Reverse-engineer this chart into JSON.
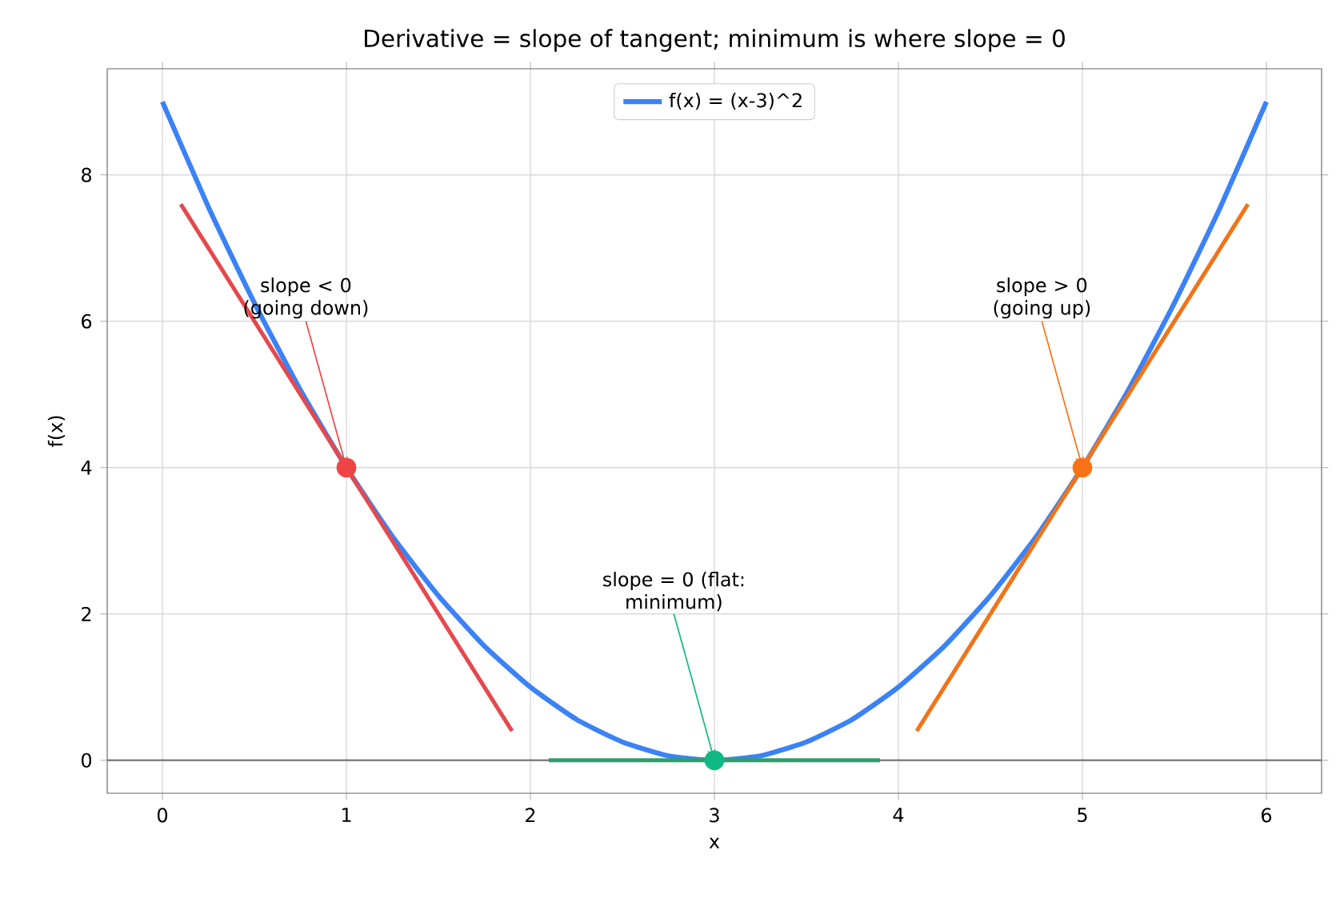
{
  "chart_data": {
    "type": "line",
    "title": "Derivative = slope of tangent; minimum is where slope = 0",
    "xlabel": "x",
    "ylabel": "f(x)",
    "xlim": [
      -0.3,
      6.3
    ],
    "ylim": [
      -0.45,
      9.45
    ],
    "xticks": [
      0,
      1,
      2,
      3,
      4,
      5,
      6
    ],
    "yticks": [
      0,
      2,
      4,
      6,
      8
    ],
    "grid": true,
    "legend": "top",
    "series": [
      {
        "name": "f(x) = (x-3)^2",
        "color": "#3b82f6",
        "x": [
          0,
          0.25,
          0.5,
          0.75,
          1,
          1.25,
          1.5,
          1.75,
          2,
          2.25,
          2.5,
          2.75,
          3,
          3.25,
          3.5,
          3.75,
          4,
          4.25,
          4.5,
          4.75,
          5,
          5.25,
          5.5,
          5.75,
          6
        ],
        "values": [
          9,
          7.56,
          6.25,
          5.06,
          4,
          3.06,
          2.25,
          1.56,
          1,
          0.56,
          0.25,
          0.06,
          0,
          0.06,
          0.25,
          0.56,
          1,
          1.56,
          2.25,
          3.06,
          4,
          5.06,
          6.25,
          7.56,
          9
        ]
      },
      {
        "color": "#e5484d",
        "x": [
          0.1,
          1.9
        ],
        "values": [
          7.6,
          0.4
        ]
      },
      {
        "color": "#2e9e6e",
        "x": [
          2.1,
          3.9
        ],
        "values": [
          0,
          0
        ]
      },
      {
        "color": "#f07418",
        "x": [
          4.1,
          5.9
        ],
        "values": [
          0.4,
          7.6
        ]
      },
      {
        "type": "scatter",
        "marker": "circle",
        "colors": [
          "#ef4444",
          "#10b981",
          "#f97316"
        ],
        "x": [
          1,
          3,
          5
        ],
        "values": [
          4,
          0,
          4
        ]
      }
    ],
    "ref_lines": [
      {
        "axis": "y",
        "value": 0,
        "color": "#808080"
      }
    ],
    "annotations": [
      {
        "text": "slope < 0 (going down)",
        "x": 1,
        "y": 4
      },
      {
        "text": "slope = 0 (flat: minimum)",
        "x": 3,
        "y": 0
      },
      {
        "text": "slope > 0 (going up)",
        "x": 5,
        "y": 4
      }
    ]
  }
}
